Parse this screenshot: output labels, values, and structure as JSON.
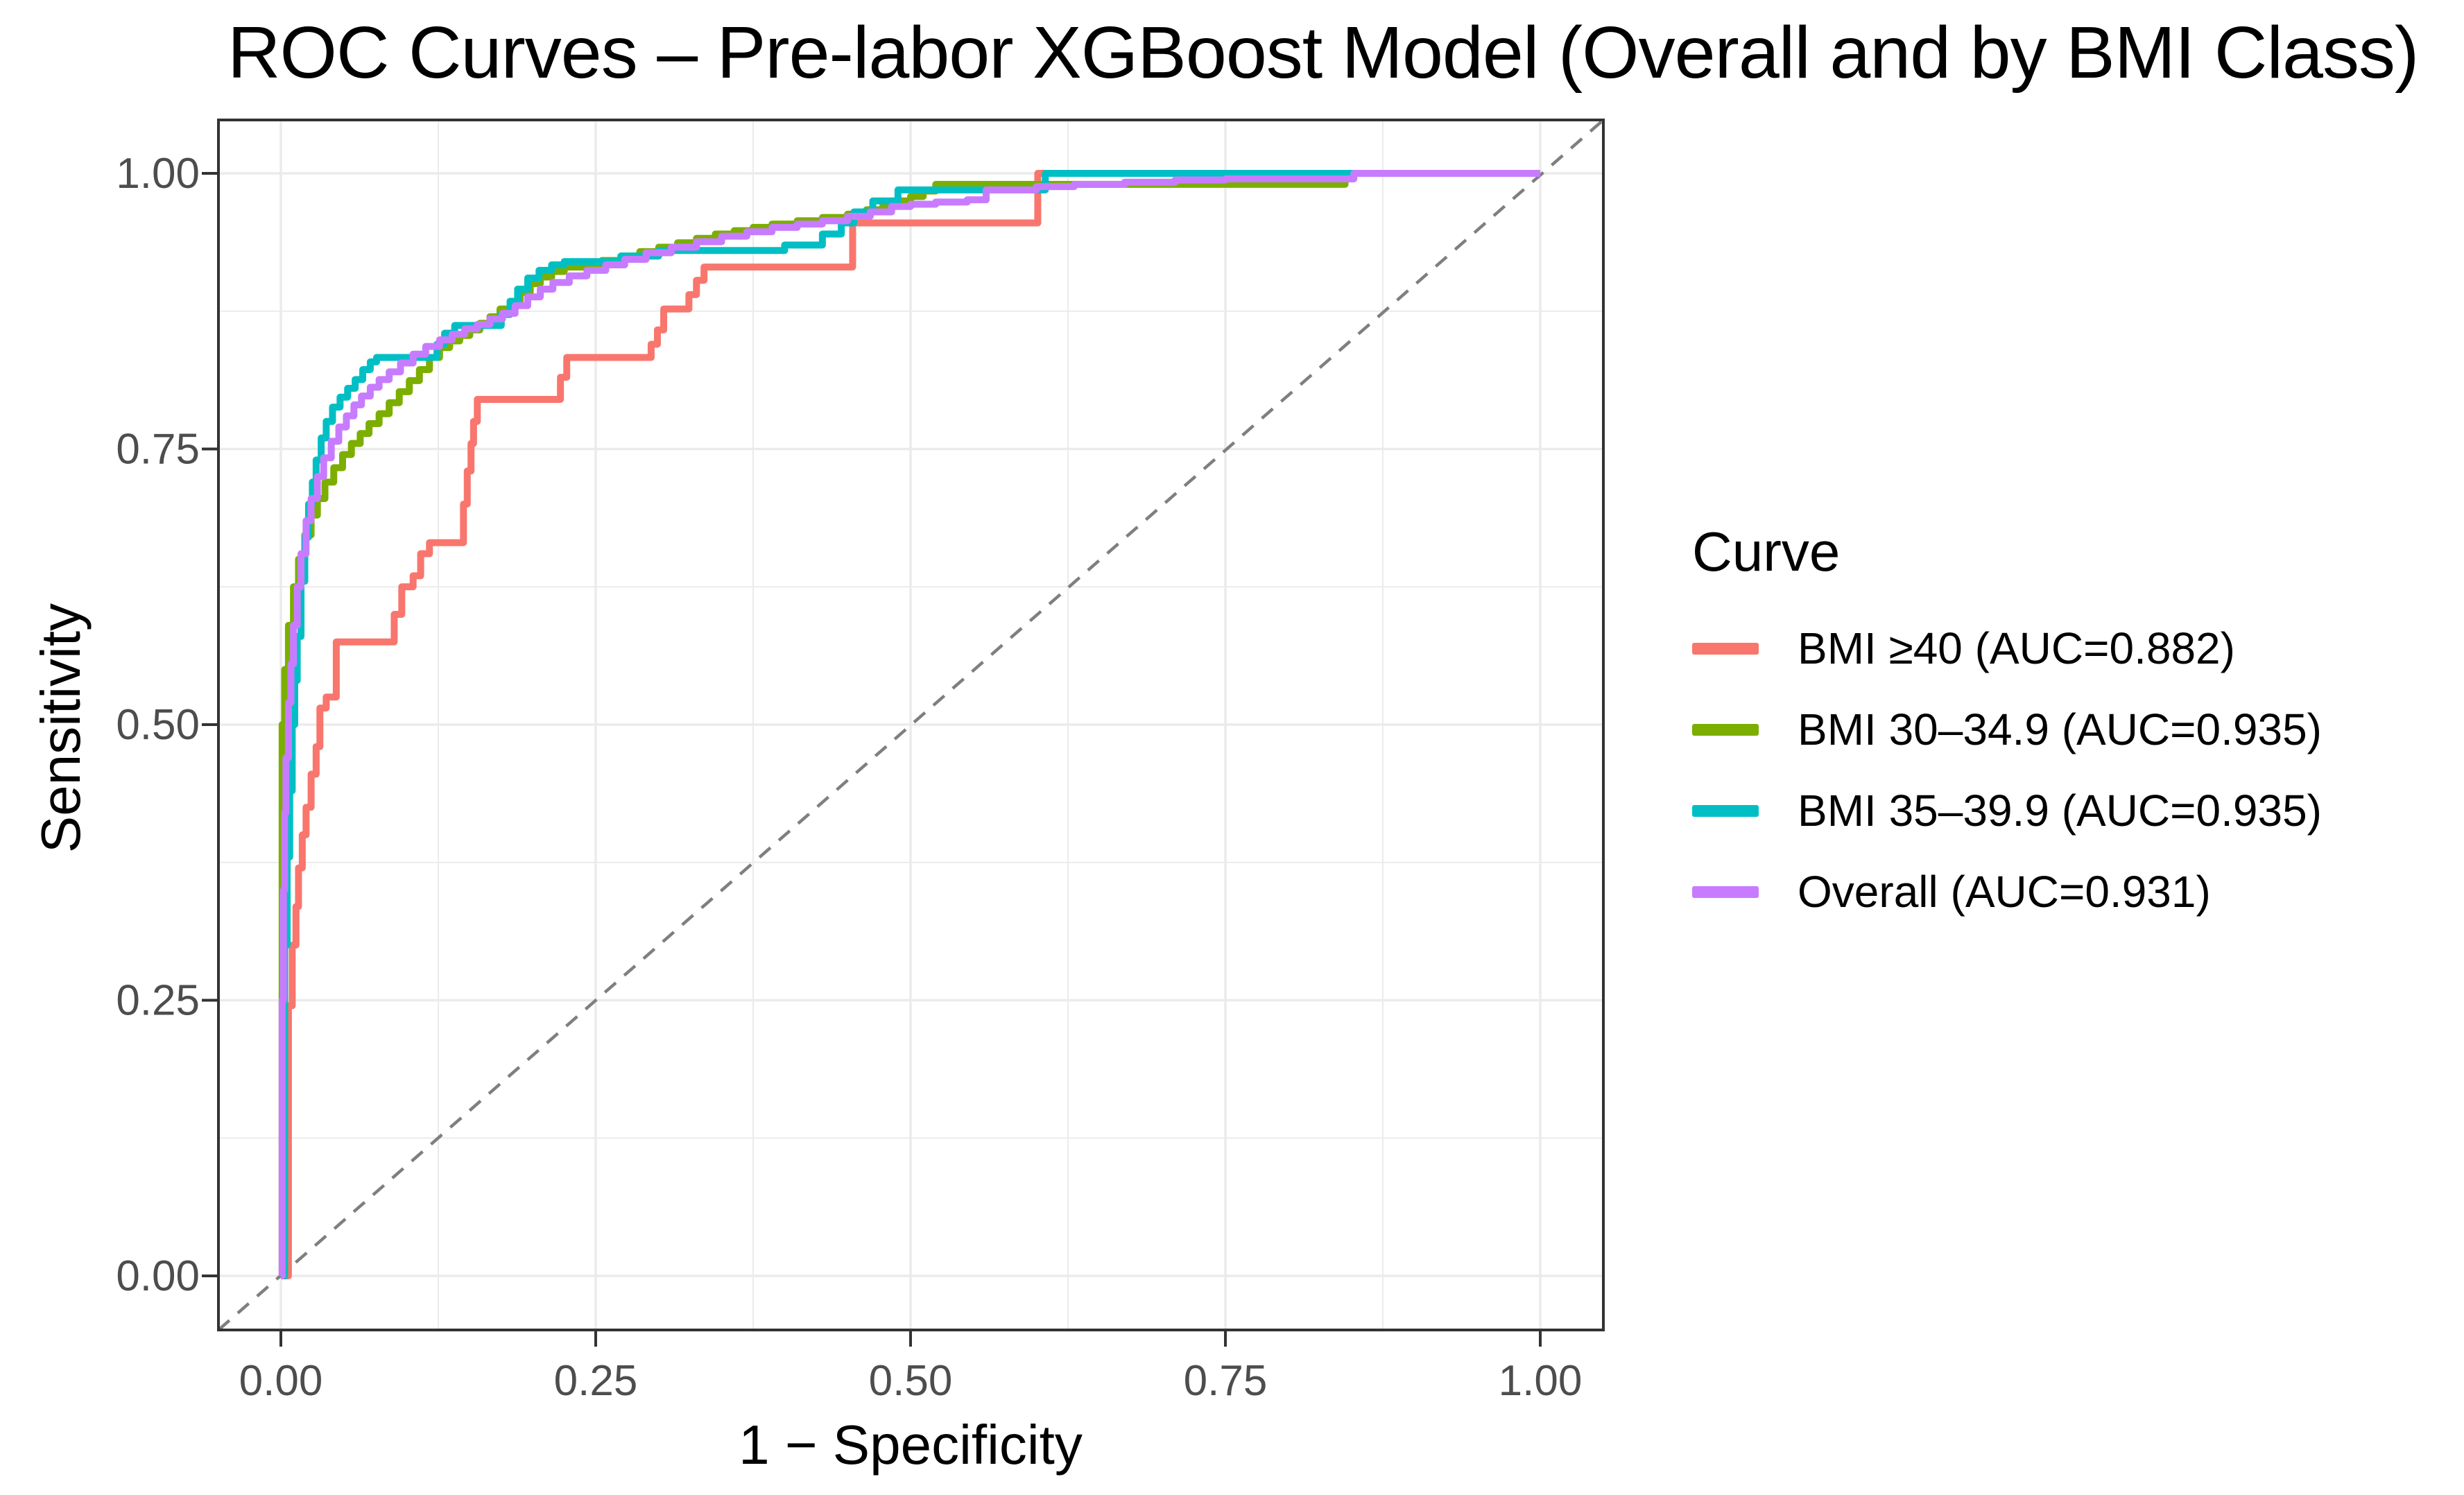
{
  "legend": {
    "title": "Curve",
    "entries": [
      {
        "label": "BMI ≥40 (AUC=0.882)",
        "color": "#F8766D"
      },
      {
        "label": "BMI 30–34.9 (AUC=0.935)",
        "color": "#7CAE00"
      },
      {
        "label": "BMI 35–39.9 (AUC=0.935)",
        "color": "#00BFC4"
      },
      {
        "label": "Overall (AUC=0.931)",
        "color": "#C77CFF"
      }
    ]
  },
  "colors": {
    "grid": "#EBEBEB",
    "panel_border": "#333333",
    "tick_mark": "#333333",
    "tick_text": "#4D4D4D",
    "reference_line": "#7F7F7F",
    "background": "#FFFFFF"
  },
  "chart_data": {
    "type": "line",
    "subtype": "roc-step-curves",
    "title": "ROC Curves – Pre-labor XGBoost Model (Overall and by BMI Class)",
    "xlabel": "1 − Specificity",
    "ylabel": "Sensitivity",
    "xlim": [
      0,
      1
    ],
    "ylim": [
      0,
      1
    ],
    "x_tick_values": [
      0,
      0.25,
      0.5,
      0.75,
      1
    ],
    "x_tick_labels": [
      "0.00",
      "0.25",
      "0.50",
      "0.75",
      "1.00"
    ],
    "y_tick_values": [
      0,
      0.25,
      0.5,
      0.75,
      1
    ],
    "y_tick_labels": [
      "0.00",
      "0.25",
      "0.50",
      "0.75",
      "1.00"
    ],
    "minor_tick_values": [
      0.125,
      0.375,
      0.625,
      0.875
    ],
    "grid": true,
    "legend_position": "right",
    "legend_title": "Curve",
    "reference_line": {
      "from": [
        0,
        0
      ],
      "to": [
        1,
        1
      ],
      "style": "dashed",
      "color": "#7F7F7F"
    },
    "step_interpolation": "after",
    "series": [
      {
        "id": "bmi-ge-40",
        "name": "BMI ≥40",
        "auc": 0.882,
        "color": "#F8766D",
        "points": [
          [
            0,
            0
          ],
          [
            0.006,
            0.245
          ],
          [
            0.009,
            0.3
          ],
          [
            0.012,
            0.335
          ],
          [
            0.014,
            0.37
          ],
          [
            0.017,
            0.4
          ],
          [
            0.02,
            0.425
          ],
          [
            0.024,
            0.455
          ],
          [
            0.028,
            0.48
          ],
          [
            0.031,
            0.515
          ],
          [
            0.036,
            0.525
          ],
          [
            0.044,
            0.575
          ],
          [
            0.09,
            0.6
          ],
          [
            0.096,
            0.625
          ],
          [
            0.105,
            0.635
          ],
          [
            0.111,
            0.655
          ],
          [
            0.118,
            0.665
          ],
          [
            0.145,
            0.7
          ],
          [
            0.148,
            0.73
          ],
          [
            0.151,
            0.755
          ],
          [
            0.153,
            0.775
          ],
          [
            0.156,
            0.795
          ],
          [
            0.222,
            0.815
          ],
          [
            0.227,
            0.833
          ],
          [
            0.294,
            0.845
          ],
          [
            0.299,
            0.858
          ],
          [
            0.304,
            0.877
          ],
          [
            0.324,
            0.89
          ],
          [
            0.33,
            0.903
          ],
          [
            0.336,
            0.915
          ],
          [
            0.454,
            0.955
          ],
          [
            0.601,
            1
          ],
          [
            1,
            1
          ]
        ]
      },
      {
        "id": "bmi-30-34-9",
        "name": "BMI 30–34.9",
        "auc": 0.935,
        "color": "#7CAE00",
        "points": [
          [
            0,
            0
          ],
          [
            0.001,
            0.5
          ],
          [
            0.003,
            0.55
          ],
          [
            0.006,
            0.59
          ],
          [
            0.01,
            0.625
          ],
          [
            0.014,
            0.65
          ],
          [
            0.019,
            0.672
          ],
          [
            0.024,
            0.69
          ],
          [
            0.029,
            0.705
          ],
          [
            0.035,
            0.72
          ],
          [
            0.042,
            0.733
          ],
          [
            0.049,
            0.745
          ],
          [
            0.056,
            0.755
          ],
          [
            0.063,
            0.764
          ],
          [
            0.07,
            0.773
          ],
          [
            0.078,
            0.782
          ],
          [
            0.086,
            0.792
          ],
          [
            0.094,
            0.802
          ],
          [
            0.102,
            0.812
          ],
          [
            0.11,
            0.822
          ],
          [
            0.118,
            0.833
          ],
          [
            0.126,
            0.842
          ],
          [
            0.134,
            0.848
          ],
          [
            0.142,
            0.853
          ],
          [
            0.15,
            0.858
          ],
          [
            0.158,
            0.864
          ],
          [
            0.166,
            0.87
          ],
          [
            0.174,
            0.877
          ],
          [
            0.182,
            0.884
          ],
          [
            0.19,
            0.892
          ],
          [
            0.198,
            0.9
          ],
          [
            0.206,
            0.906
          ],
          [
            0.215,
            0.911
          ],
          [
            0.225,
            0.915
          ],
          [
            0.24,
            0.918
          ],
          [
            0.255,
            0.921
          ],
          [
            0.27,
            0.925
          ],
          [
            0.285,
            0.929
          ],
          [
            0.3,
            0.933
          ],
          [
            0.315,
            0.937
          ],
          [
            0.33,
            0.941
          ],
          [
            0.345,
            0.945
          ],
          [
            0.36,
            0.948
          ],
          [
            0.375,
            0.951
          ],
          [
            0.39,
            0.954
          ],
          [
            0.41,
            0.957
          ],
          [
            0.43,
            0.96
          ],
          [
            0.45,
            0.963
          ],
          [
            0.465,
            0.967
          ],
          [
            0.478,
            0.971
          ],
          [
            0.49,
            0.975
          ],
          [
            0.5,
            0.979
          ],
          [
            0.51,
            0.984
          ],
          [
            0.52,
            0.99
          ],
          [
            0.845,
            1
          ],
          [
            1,
            1
          ]
        ]
      },
      {
        "id": "bmi-35-39-9",
        "name": "BMI 35–39.9",
        "auc": 0.935,
        "color": "#00BFC4",
        "points": [
          [
            0,
            0
          ],
          [
            0.003,
            0.3
          ],
          [
            0.005,
            0.38
          ],
          [
            0.007,
            0.44
          ],
          [
            0.009,
            0.5
          ],
          [
            0.011,
            0.54
          ],
          [
            0.013,
            0.58
          ],
          [
            0.016,
            0.63
          ],
          [
            0.019,
            0.67
          ],
          [
            0.022,
            0.7
          ],
          [
            0.025,
            0.72
          ],
          [
            0.028,
            0.74
          ],
          [
            0.032,
            0.76
          ],
          [
            0.036,
            0.775
          ],
          [
            0.041,
            0.788
          ],
          [
            0.047,
            0.797
          ],
          [
            0.053,
            0.805
          ],
          [
            0.059,
            0.813
          ],
          [
            0.065,
            0.822
          ],
          [
            0.071,
            0.829
          ],
          [
            0.076,
            0.833
          ],
          [
            0.124,
            0.845
          ],
          [
            0.13,
            0.855
          ],
          [
            0.138,
            0.862
          ],
          [
            0.175,
            0.872
          ],
          [
            0.182,
            0.884
          ],
          [
            0.188,
            0.895
          ],
          [
            0.196,
            0.905
          ],
          [
            0.205,
            0.912
          ],
          [
            0.215,
            0.917
          ],
          [
            0.225,
            0.92
          ],
          [
            0.27,
            0.925
          ],
          [
            0.3,
            0.93
          ],
          [
            0.4,
            0.935
          ],
          [
            0.43,
            0.945
          ],
          [
            0.445,
            0.955
          ],
          [
            0.455,
            0.965
          ],
          [
            0.47,
            0.975
          ],
          [
            0.49,
            0.985
          ],
          [
            0.607,
            1
          ],
          [
            1,
            1
          ]
        ]
      },
      {
        "id": "overall",
        "name": "Overall",
        "auc": 0.931,
        "color": "#C77CFF",
        "points": [
          [
            0,
            0
          ],
          [
            0.001,
            0.25
          ],
          [
            0.002,
            0.35
          ],
          [
            0.003,
            0.42
          ],
          [
            0.004,
            0.47
          ],
          [
            0.006,
            0.52
          ],
          [
            0.008,
            0.555
          ],
          [
            0.01,
            0.59
          ],
          [
            0.013,
            0.625
          ],
          [
            0.016,
            0.655
          ],
          [
            0.02,
            0.685
          ],
          [
            0.024,
            0.705
          ],
          [
            0.029,
            0.725
          ],
          [
            0.034,
            0.742
          ],
          [
            0.04,
            0.757
          ],
          [
            0.046,
            0.77
          ],
          [
            0.052,
            0.78
          ],
          [
            0.058,
            0.79
          ],
          [
            0.064,
            0.798
          ],
          [
            0.071,
            0.806
          ],
          [
            0.078,
            0.813
          ],
          [
            0.086,
            0.82
          ],
          [
            0.095,
            0.828
          ],
          [
            0.105,
            0.836
          ],
          [
            0.115,
            0.843
          ],
          [
            0.126,
            0.849
          ],
          [
            0.136,
            0.854
          ],
          [
            0.146,
            0.859
          ],
          [
            0.156,
            0.863
          ],
          [
            0.166,
            0.868
          ],
          [
            0.176,
            0.873
          ],
          [
            0.186,
            0.88
          ],
          [
            0.196,
            0.888
          ],
          [
            0.206,
            0.895
          ],
          [
            0.216,
            0.901
          ],
          [
            0.229,
            0.907
          ],
          [
            0.243,
            0.912
          ],
          [
            0.258,
            0.917
          ],
          [
            0.273,
            0.922
          ],
          [
            0.29,
            0.928
          ],
          [
            0.31,
            0.933
          ],
          [
            0.33,
            0.938
          ],
          [
            0.35,
            0.943
          ],
          [
            0.37,
            0.947
          ],
          [
            0.39,
            0.951
          ],
          [
            0.41,
            0.954
          ],
          [
            0.43,
            0.957
          ],
          [
            0.45,
            0.961
          ],
          [
            0.468,
            0.965
          ],
          [
            0.485,
            0.97
          ],
          [
            0.5,
            0.972
          ],
          [
            0.52,
            0.974
          ],
          [
            0.545,
            0.976
          ],
          [
            0.56,
            0.985
          ],
          [
            0.6,
            0.988
          ],
          [
            0.63,
            0.99
          ],
          [
            0.67,
            0.992
          ],
          [
            0.71,
            0.994
          ],
          [
            0.75,
            0.995
          ],
          [
            0.852,
            1
          ],
          [
            1,
            1
          ]
        ]
      }
    ]
  }
}
